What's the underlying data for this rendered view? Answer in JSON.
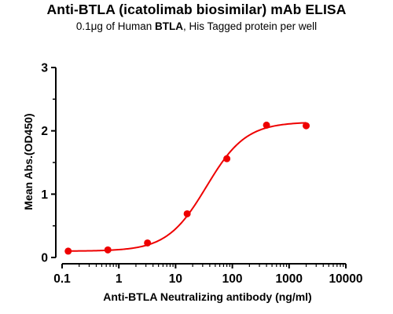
{
  "chart_data": {
    "type": "scatter",
    "title": "Anti-BTLA (icatolimab biosimilar) mAb ELISA",
    "subtitle": {
      "prefix": "0.1μg of Human ",
      "bold": "BTLA",
      "suffix": ", His Tagged protein per well"
    },
    "xlabel": "Anti-BTLA Neutralizing antibody (ng/ml)",
    "ylabel": "Mean Abs.(OD450)",
    "x_scale": "log",
    "xlim": [
      0.1,
      10000
    ],
    "ylim": [
      0,
      3
    ],
    "x_ticks": [
      "0.1",
      "1",
      "10",
      "100",
      "1000",
      "10000"
    ],
    "y_ticks": [
      "0",
      "1",
      "2",
      "3"
    ],
    "grid": false,
    "color": "#ee0000",
    "series": [
      {
        "x": [
          0.128,
          0.64,
          3.2,
          16,
          80,
          400,
          2000
        ],
        "y": [
          0.1,
          0.12,
          0.23,
          0.69,
          1.56,
          2.09,
          2.08
        ],
        "fit": "4PL",
        "fit_params": {
          "bottom": 0.1,
          "top": 2.14,
          "ec50": 35,
          "hill": 1.25
        }
      }
    ]
  }
}
